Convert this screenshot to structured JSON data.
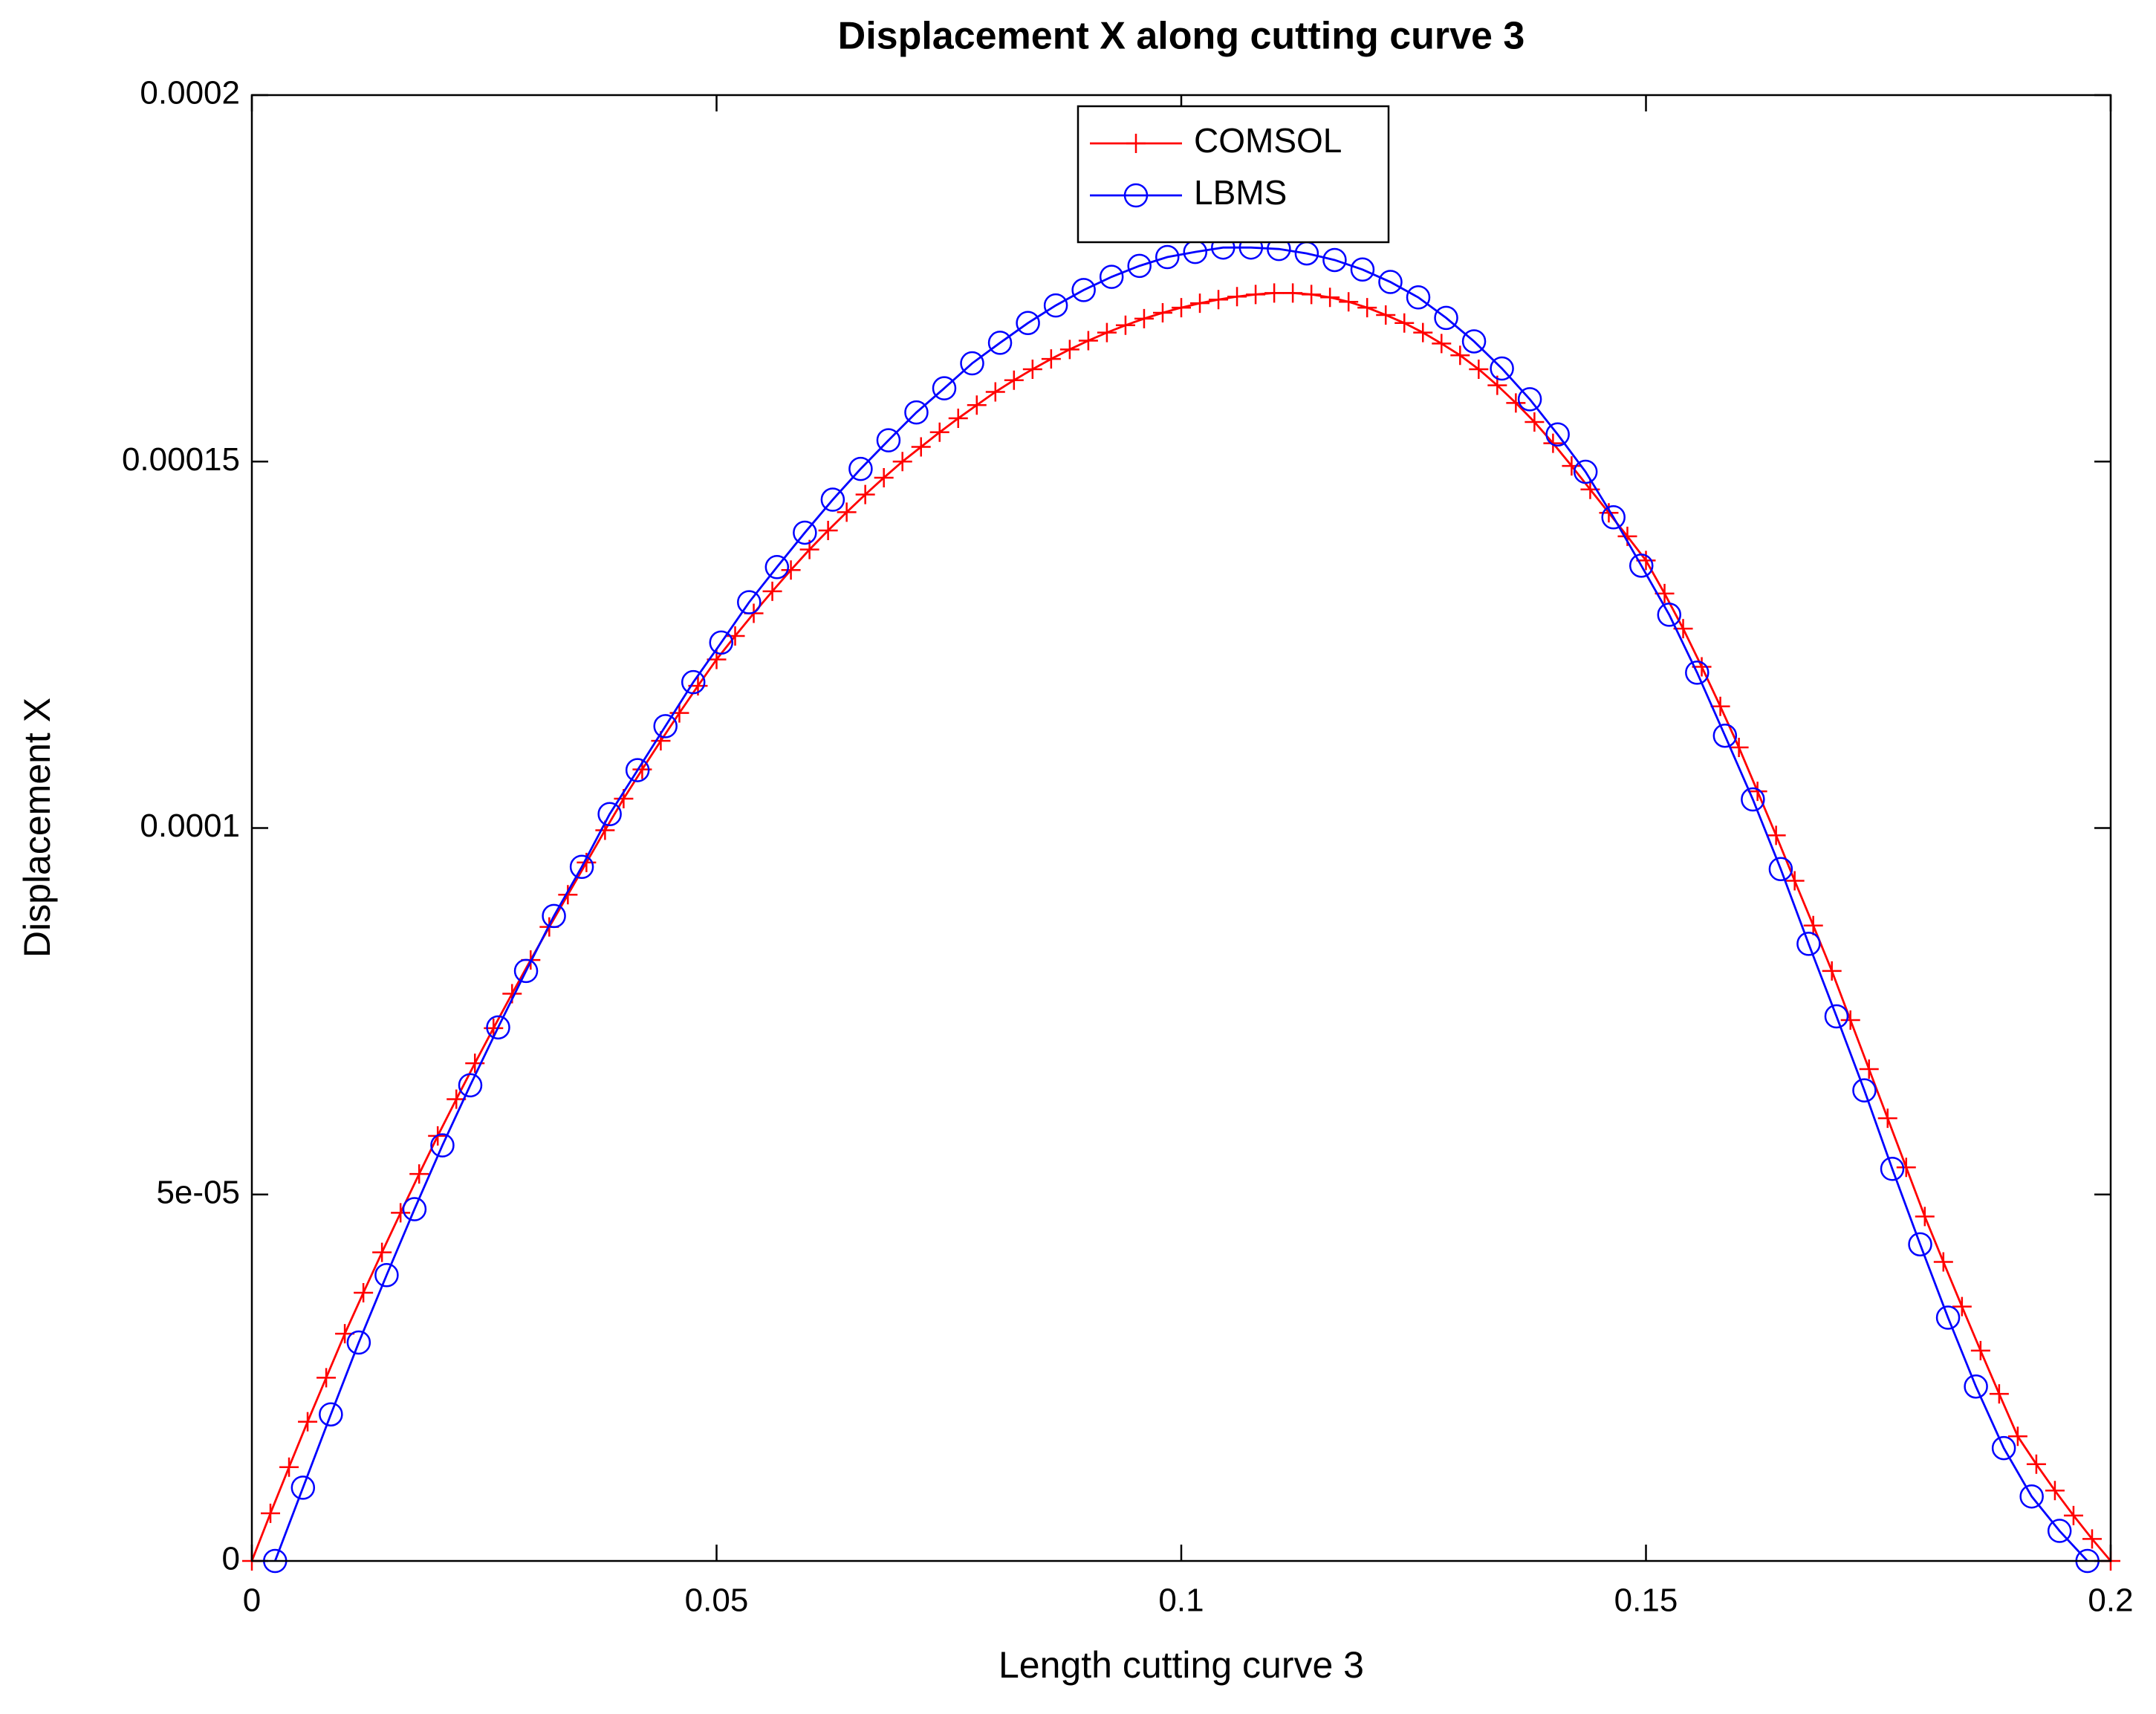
{
  "chart_data": {
    "type": "line",
    "title": "Displacement X along cutting curve 3",
    "x_label": "Length cutting curve 3",
    "y_label": "Displacement X",
    "xlim": [
      0,
      0.2
    ],
    "ylim": [
      0,
      0.0002
    ],
    "xticks": [
      0,
      0.05,
      0.1,
      0.15,
      0.2
    ],
    "yticks": [
      0,
      {
        "value": 5e-05,
        "label": "5e-05"
      },
      0.0001,
      0.00015,
      0.0002
    ],
    "grid": false,
    "legend_position": "upper center",
    "series": [
      {
        "name": "COMSOL",
        "color": "#ff0000",
        "marker": "plus",
        "x": [
          0,
          0.002,
          0.004,
          0.006,
          0.008,
          0.01,
          0.012,
          0.014,
          0.016,
          0.018,
          0.02,
          0.022,
          0.024,
          0.026,
          0.028,
          0.03,
          0.032,
          0.034,
          0.036,
          0.038,
          0.04,
          0.042,
          0.044,
          0.046,
          0.048,
          0.05,
          0.052,
          0.054,
          0.056,
          0.058,
          0.06,
          0.062,
          0.064,
          0.066,
          0.068,
          0.07,
          0.072,
          0.074,
          0.076,
          0.078,
          0.08,
          0.082,
          0.084,
          0.086,
          0.088,
          0.09,
          0.092,
          0.094,
          0.096,
          0.098,
          0.1,
          0.102,
          0.104,
          0.106,
          0.108,
          0.11,
          0.112,
          0.114,
          0.116,
          0.118,
          0.12,
          0.122,
          0.124,
          0.126,
          0.128,
          0.13,
          0.132,
          0.134,
          0.136,
          0.138,
          0.14,
          0.142,
          0.144,
          0.146,
          0.148,
          0.15,
          0.152,
          0.154,
          0.156,
          0.158,
          0.16,
          0.162,
          0.164,
          0.166,
          0.168,
          0.17,
          0.172,
          0.174,
          0.176,
          0.178,
          0.18,
          0.182,
          0.184,
          0.186,
          0.188,
          0.19,
          0.192,
          0.194,
          0.196,
          0.198,
          0.2
        ],
        "values": [
          0,
          6.5e-06,
          1.28e-05,
          1.9e-05,
          2.5e-05,
          3.1e-05,
          3.66e-05,
          4.21e-05,
          4.75e-05,
          5.28e-05,
          5.8e-05,
          6.3e-05,
          6.79e-05,
          7.27e-05,
          7.74e-05,
          8.2e-05,
          8.65e-05,
          9.09e-05,
          9.53e-05,
          9.97e-05,
          0.000104,
          0.000108,
          0.0001119,
          0.0001157,
          0.0001194,
          0.000123,
          0.0001262,
          0.0001293,
          0.0001323,
          0.0001352,
          0.000138,
          0.0001406,
          0.0001431,
          0.0001455,
          0.0001478,
          0.00015,
          0.000152,
          0.000154,
          0.0001559,
          0.0001577,
          0.0001595,
          0.0001611,
          0.0001626,
          0.000164,
          0.0001653,
          0.0001665,
          0.0001676,
          0.0001686,
          0.0001695,
          0.0001703,
          0.000171,
          0.0001716,
          0.0001721,
          0.0001725,
          0.0001728,
          0.000173,
          0.000173,
          0.0001728,
          0.0001724,
          0.0001718,
          0.000171,
          0.00017,
          0.0001689,
          0.0001676,
          0.0001661,
          0.0001645,
          0.0001626,
          0.0001604,
          0.000158,
          0.0001554,
          0.0001525,
          0.0001494,
          0.0001462,
          0.000143,
          0.0001398,
          0.0001365,
          0.000132,
          0.0001272,
          0.000122,
          0.0001166,
          0.000111,
          0.000105,
          9.9e-05,
          9.28e-05,
          8.67e-05,
          8.05e-05,
          7.38e-05,
          6.71e-05,
          6.04e-05,
          5.37e-05,
          4.7e-05,
          4.08e-05,
          3.47e-05,
          2.87e-05,
          2.28e-05,
          1.7e-05,
          1.32e-05,
          9.6e-06,
          6.2e-06,
          3e-06,
          0
        ]
      },
      {
        "name": "LBMS",
        "color": "#0000ff",
        "marker": "circle",
        "x": [
          0.0025,
          0.0055,
          0.0085,
          0.0115,
          0.0145,
          0.0175,
          0.0205,
          0.0235,
          0.0265,
          0.0295,
          0.0325,
          0.0355,
          0.0385,
          0.0415,
          0.0445,
          0.0475,
          0.0505,
          0.0535,
          0.0565,
          0.0595,
          0.0625,
          0.0655,
          0.0685,
          0.0715,
          0.0745,
          0.0775,
          0.0805,
          0.0835,
          0.0865,
          0.0895,
          0.0925,
          0.0955,
          0.0985,
          0.1015,
          0.1045,
          0.1075,
          0.1105,
          0.1135,
          0.1165,
          0.1195,
          0.1225,
          0.1255,
          0.1285,
          0.1315,
          0.1345,
          0.1375,
          0.1405,
          0.1435,
          0.1465,
          0.1495,
          0.1525,
          0.1555,
          0.1585,
          0.1615,
          0.1645,
          0.1675,
          0.1705,
          0.1735,
          0.1765,
          0.1795,
          0.1825,
          0.1855,
          0.1885,
          0.1915,
          0.1945,
          0.1975
        ],
        "values": [
          0,
          1e-05,
          2e-05,
          2.98e-05,
          3.9e-05,
          4.8e-05,
          5.67e-05,
          6.49e-05,
          7.28e-05,
          8.05e-05,
          8.8e-05,
          9.47e-05,
          0.0001019,
          0.0001079,
          0.0001139,
          0.0001199,
          0.0001253,
          0.0001308,
          0.0001356,
          0.0001403,
          0.0001448,
          0.000149,
          0.0001529,
          0.0001567,
          0.00016,
          0.0001634,
          0.0001662,
          0.0001689,
          0.0001713,
          0.0001734,
          0.0001752,
          0.0001767,
          0.0001779,
          0.0001786,
          0.0001792,
          0.0001792,
          0.000179,
          0.0001784,
          0.0001775,
          0.0001762,
          0.0001745,
          0.0001724,
          0.0001696,
          0.0001664,
          0.0001627,
          0.0001585,
          0.0001537,
          0.0001486,
          0.0001424,
          0.0001358,
          0.0001291,
          0.0001212,
          0.0001126,
          0.0001039,
          9.44e-05,
          8.42e-05,
          7.43e-05,
          6.42e-05,
          5.35e-05,
          4.32e-05,
          3.32e-05,
          2.38e-05,
          1.54e-05,
          8.8e-06,
          4.1e-06,
          0
        ]
      }
    ]
  }
}
